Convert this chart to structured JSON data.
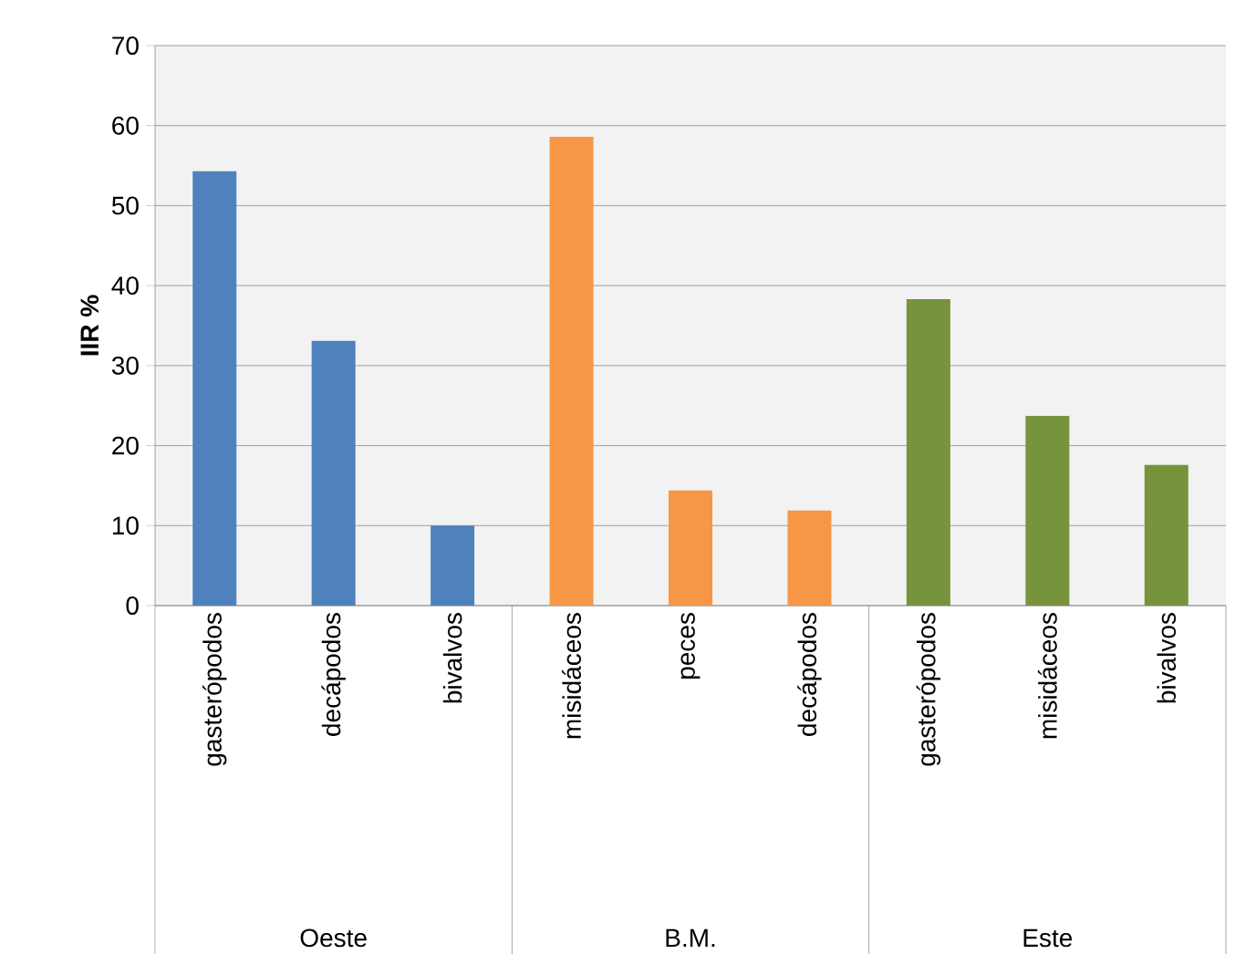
{
  "chart_data": {
    "type": "bar",
    "ylabel": "IIR %",
    "categories": [
      "gasterópodos",
      "decápodos",
      "bivalvos",
      "misidáceos",
      "peces",
      "decápodos",
      "gasterópodos",
      "misidáceos",
      "bivalvos"
    ],
    "series": [
      {
        "color": "#4f81bd",
        "values": [
          54.3,
          33.1,
          10.0,
          null,
          null,
          null,
          null,
          null,
          null
        ]
      },
      {
        "color": "#f79646",
        "values": [
          null,
          null,
          null,
          58.6,
          14.4,
          11.9,
          null,
          null,
          null
        ]
      },
      {
        "color": "#77933c",
        "values": [
          null,
          null,
          null,
          null,
          null,
          null,
          38.3,
          23.7,
          17.6
        ]
      }
    ],
    "annotations": [
      "Oeste",
      "B.M.",
      "Este"
    ],
    "ylim": [
      0,
      70
    ],
    "yticks": [
      0,
      10,
      20,
      30,
      40,
      50,
      60,
      70
    ],
    "grid": "y"
  }
}
